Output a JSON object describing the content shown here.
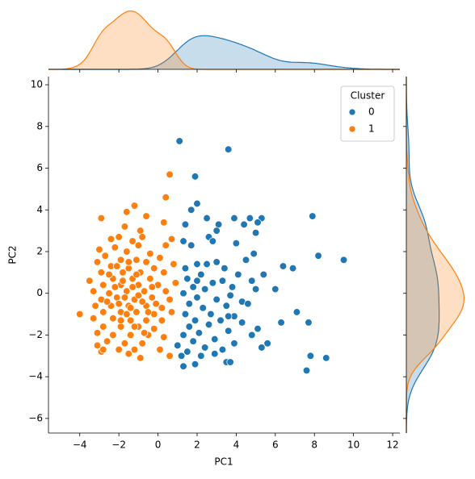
{
  "chart_data": {
    "type": "jointplot_scatter",
    "xlabel": "PC1",
    "ylabel": "PC2",
    "legend_title": "Cluster",
    "legend": "upper right",
    "xlim": [
      -5.6,
      12.37
    ],
    "ylim": [
      -6.7,
      10.39
    ],
    "xticks": [
      {
        "value": -4,
        "label": "−4"
      },
      {
        "value": -2,
        "label": "−2"
      },
      0,
      2,
      4,
      6,
      8,
      10,
      12
    ],
    "yticks": [
      {
        "value": -6,
        "label": "−6"
      },
      {
        "value": -4,
        "label": "−4"
      },
      {
        "value": -2,
        "label": "−2"
      },
      0,
      2,
      4,
      6,
      8,
      10
    ],
    "series": [
      {
        "name": "0",
        "color": "#1f77b4",
        "x": [
          1.1,
          3.6,
          1.9,
          2.0,
          1.7,
          2.5,
          1.4,
          3.1,
          3.9,
          4.7,
          5.3,
          4.4,
          5.1,
          3.0,
          2.6,
          2.8,
          1.3,
          1.7,
          5.0,
          4.0,
          7.9,
          8.2,
          9.5,
          4.9,
          6.4,
          6.9,
          4.5,
          2.0,
          2.5,
          3.0,
          1.4,
          3.4,
          5.4,
          2.2,
          4.1,
          1.5,
          2.8,
          3.3,
          1.8,
          2.4,
          4.8,
          1.3,
          2.0,
          3.7,
          5.0,
          6.0,
          4.3,
          3.0,
          1.6,
          2.3,
          3.5,
          4.6,
          2.7,
          1.4,
          3.9,
          7.1,
          1.9,
          3.2,
          2.6,
          4.3,
          1.6,
          6.3,
          7.7,
          3.6,
          5.1,
          2.1,
          1.3,
          4.8,
          2.9,
          1.8,
          3.9,
          5.6,
          1.0,
          2.4,
          3.3,
          1.5,
          2.9,
          1.2,
          2.2,
          5.3,
          7.8,
          8.6,
          3.5,
          3.7,
          1.3,
          1.9,
          7.6,
          3.6,
          2.0,
          3.8
        ],
        "values": [
          7.3,
          6.9,
          5.6,
          4.3,
          4.0,
          3.6,
          3.3,
          3.3,
          3.6,
          3.6,
          3.6,
          3.3,
          3.4,
          3.0,
          2.7,
          2.5,
          2.5,
          2.3,
          2.9,
          2.4,
          3.7,
          1.8,
          1.6,
          1.9,
          1.3,
          1.2,
          1.6,
          1.4,
          1.4,
          1.5,
          1.2,
          1.2,
          0.9,
          0.9,
          0.9,
          0.7,
          0.5,
          0.6,
          0.3,
          0.2,
          0.6,
          0.0,
          -0.2,
          -0.1,
          0.2,
          0.2,
          -0.4,
          -0.3,
          -0.5,
          -0.7,
          -0.6,
          -0.5,
          -1.0,
          -1.0,
          -1.1,
          -0.9,
          -1.3,
          -1.3,
          -1.5,
          -1.4,
          -1.6,
          -1.4,
          -1.4,
          -1.8,
          -1.7,
          -1.9,
          -2.0,
          -2.0,
          -2.2,
          -2.3,
          -2.4,
          -2.4,
          -2.5,
          -2.6,
          -2.7,
          -2.8,
          -2.9,
          -3.0,
          -3.0,
          -2.6,
          -3.0,
          -3.1,
          -3.3,
          -3.3,
          -3.5,
          -3.4,
          -3.7,
          -1.1,
          0.6,
          0.3
        ]
      },
      {
        "name": "1",
        "color": "#ff7f0e",
        "x": [
          0.6,
          0.4,
          -1.2,
          -1.6,
          -0.6,
          -2.9,
          0.3,
          -1.7,
          -0.9,
          -2.0,
          -2.4,
          0.7,
          -0.8,
          -1.3,
          -1.0,
          0.4,
          -3.0,
          -2.2,
          -1.6,
          -0.4,
          -2.7,
          0.1,
          -1.9,
          -1.1,
          -3.1,
          -0.6,
          0.8,
          -2.4,
          -1.5,
          -0.2,
          -2.9,
          -1.8,
          -0.9,
          0.3,
          -3.5,
          -2.3,
          -1.3,
          -0.4,
          -2.8,
          -1.9,
          -1.0,
          0.0,
          0.9,
          -3.3,
          -2.5,
          -1.6,
          -0.7,
          0.4,
          -2.9,
          -2.1,
          -1.2,
          -0.3,
          0.6,
          -3.2,
          -2.4,
          -1.5,
          -0.6,
          0.2,
          -4.0,
          -2.8,
          -1.9,
          -1.1,
          -0.2,
          0.7,
          -3.3,
          -2.3,
          -1.4,
          -0.6,
          0.2,
          -2.8,
          -1.9,
          -1.0,
          -0.2,
          -3.1,
          -2.3,
          -1.4,
          -0.5,
          0.3,
          -2.6,
          -1.7,
          -0.8,
          -3.1,
          -2.0,
          -1.2,
          0.1,
          -2.9,
          -1.5,
          -2.8,
          -0.9,
          0.6,
          -1.7,
          -1.3,
          -2.0,
          -1.0,
          -1.6,
          -0.8,
          -2.2,
          -1.4,
          -1.8,
          -0.5,
          -2.6,
          -1.1,
          -1.9,
          -0.3,
          -2.5,
          -1.2,
          -0.1,
          -2.1,
          -0.7,
          -1.5
        ],
        "values": [
          5.7,
          4.6,
          4.2,
          3.9,
          3.7,
          3.6,
          3.4,
          3.2,
          3.0,
          2.7,
          2.6,
          2.6,
          2.7,
          2.5,
          2.3,
          2.3,
          2.1,
          2.2,
          2.0,
          1.9,
          1.8,
          1.7,
          1.6,
          1.6,
          1.5,
          1.5,
          1.4,
          1.3,
          1.2,
          1.2,
          1.0,
          1.0,
          1.0,
          1.0,
          0.6,
          0.7,
          0.7,
          0.7,
          0.4,
          0.4,
          0.4,
          0.4,
          0.5,
          0.1,
          0.0,
          0.1,
          0.1,
          0.1,
          -0.3,
          -0.2,
          -0.3,
          -0.2,
          -0.3,
          -0.6,
          -0.6,
          -0.6,
          -0.6,
          -0.7,
          -1.0,
          -0.9,
          -0.9,
          -0.9,
          -1.0,
          -0.9,
          -1.2,
          -1.2,
          -1.3,
          -1.3,
          -1.3,
          -1.6,
          -1.6,
          -1.6,
          -1.7,
          -1.9,
          -2.0,
          -2.0,
          -2.0,
          -2.1,
          -2.3,
          -2.4,
          -2.4,
          -2.5,
          -2.7,
          -2.7,
          -2.7,
          -2.8,
          -2.9,
          -2.7,
          -3.1,
          -3.0,
          -0.2,
          0.3,
          -0.5,
          -0.1,
          -1.0,
          -0.4,
          0.3,
          -0.7,
          0.6,
          -0.9,
          -0.4,
          0.9,
          -1.3,
          0.3,
          0.9,
          -1.6,
          -0.5,
          1.3,
          -1.9,
          1.5
        ]
      }
    ]
  }
}
